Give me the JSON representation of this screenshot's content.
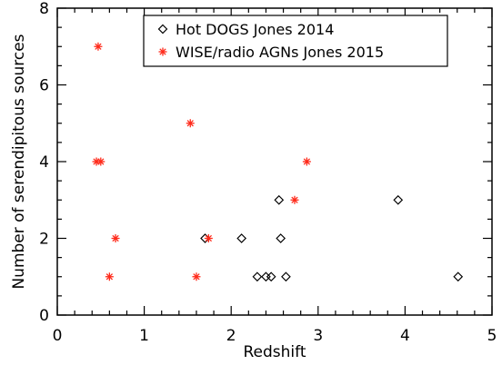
{
  "chart_data": {
    "type": "scatter",
    "xlabel": "Redshift",
    "ylabel": "Number of serendipitous sources",
    "xlim": [
      0,
      5
    ],
    "ylim": [
      0,
      8
    ],
    "xticks": [
      "0",
      "1",
      "2",
      "3",
      "4",
      "5"
    ],
    "yticks": [
      "0",
      "2",
      "4",
      "6",
      "8"
    ],
    "grid": false,
    "legend_position": "top-right",
    "series": [
      {
        "name": "Hot DOGS Jones 2014",
        "marker": "diamond",
        "color": "#000000",
        "points": [
          [
            1.7,
            2
          ],
          [
            2.12,
            2
          ],
          [
            2.3,
            1
          ],
          [
            2.4,
            1
          ],
          [
            2.46,
            1
          ],
          [
            2.55,
            3
          ],
          [
            2.57,
            2
          ],
          [
            2.63,
            1
          ],
          [
            3.92,
            3
          ],
          [
            4.61,
            1
          ]
        ]
      },
      {
        "name": "WISE/radio AGNs Jones 2015",
        "marker": "asterisk",
        "color": "#ff2a1a",
        "points": [
          [
            0.47,
            7
          ],
          [
            0.45,
            4
          ],
          [
            0.5,
            4
          ],
          [
            0.6,
            1
          ],
          [
            0.67,
            2
          ],
          [
            1.53,
            5
          ],
          [
            1.6,
            1
          ],
          [
            1.74,
            2
          ],
          [
            2.73,
            3
          ],
          [
            2.87,
            4
          ]
        ]
      }
    ]
  }
}
